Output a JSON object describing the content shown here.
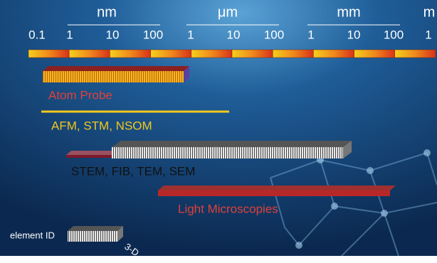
{
  "scale": {
    "units": [
      "nm",
      "μm",
      "mm",
      "m"
    ],
    "labels": [
      "0.1",
      "1",
      "10",
      "100",
      "1",
      "10",
      "100",
      "1",
      "10",
      "100",
      "1"
    ]
  },
  "techniques": [
    {
      "label": "Atom Probe"
    },
    {
      "label": "AFM, STM, NSOM"
    },
    {
      "label": "STEM, FIB, TEM, SEM"
    },
    {
      "label": "Light Microscopies"
    }
  ],
  "legend": {
    "element_id": "element ID",
    "three_d": "3-D"
  }
}
